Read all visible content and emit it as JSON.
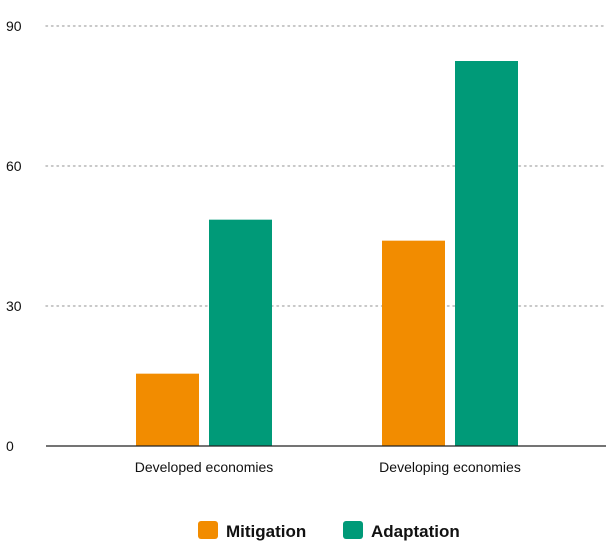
{
  "chart_data": {
    "type": "bar",
    "title": "",
    "xlabel": "",
    "ylabel": "",
    "categories": [
      "Developed economies",
      "Developing economies"
    ],
    "series": [
      {
        "name": "Mitigation",
        "values": [
          15.5,
          44
        ],
        "color": "#f28c00"
      },
      {
        "name": "Adaptation",
        "values": [
          48.5,
          82.5
        ],
        "color": "#009a78"
      }
    ],
    "ylim": [
      0,
      90
    ],
    "yticks": [
      "0",
      "30",
      "60",
      "90"
    ],
    "ytick_values": [
      0,
      30,
      60,
      90
    ],
    "grid": "horizontal dotted",
    "legend_position": "bottom-center"
  }
}
